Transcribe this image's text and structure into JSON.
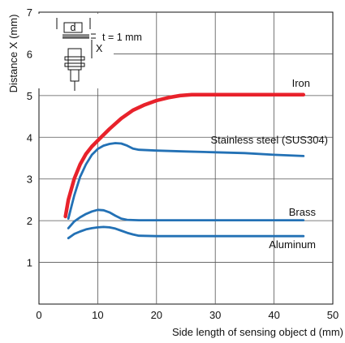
{
  "chart_data": {
    "type": "line",
    "xlabel": "Side length of sensing object d (mm)",
    "ylabel": "Distance X (mm)",
    "xlim": [
      0,
      50
    ],
    "ylim": [
      0,
      7
    ],
    "x_ticks": [
      "0",
      "10",
      "20",
      "30",
      "40",
      "50"
    ],
    "y_ticks": [
      "1",
      "2",
      "3",
      "4",
      "5",
      "6",
      "7"
    ],
    "grid": true,
    "inset_label": "t = 1 mm",
    "inset_box_label": "d",
    "inset_x_label": "X",
    "series": [
      {
        "name": "Iron",
        "color": "#e8222b",
        "x": [
          4.5,
          5,
          6,
          7,
          8,
          9,
          10,
          12,
          14,
          16,
          18,
          20,
          22,
          24,
          26,
          30,
          35,
          40,
          45
        ],
        "y": [
          2.1,
          2.5,
          3.0,
          3.35,
          3.6,
          3.78,
          3.92,
          4.2,
          4.45,
          4.65,
          4.78,
          4.88,
          4.95,
          5.0,
          5.02,
          5.02,
          5.02,
          5.02,
          5.02
        ]
      },
      {
        "name": "Stainless steel (SUS304)",
        "color": "#2371b5",
        "x": [
          5,
          6,
          7,
          8,
          9,
          10,
          11,
          12,
          13,
          14,
          15,
          16,
          17,
          20,
          25,
          30,
          35,
          40,
          45
        ],
        "y": [
          2.05,
          2.6,
          3.05,
          3.35,
          3.58,
          3.72,
          3.8,
          3.84,
          3.86,
          3.85,
          3.8,
          3.73,
          3.7,
          3.68,
          3.66,
          3.64,
          3.62,
          3.58,
          3.55
        ]
      },
      {
        "name": "Brass",
        "color": "#2371b5",
        "x": [
          5,
          6,
          7,
          8,
          9,
          10,
          11,
          12,
          13,
          14,
          15,
          17,
          20,
          30,
          45
        ],
        "y": [
          1.82,
          1.98,
          2.08,
          2.16,
          2.22,
          2.26,
          2.25,
          2.2,
          2.12,
          2.05,
          2.02,
          2.01,
          2.01,
          2.01,
          2.01
        ]
      },
      {
        "name": "Aluminum",
        "color": "#2371b5",
        "x": [
          5,
          6,
          7,
          8,
          9,
          10,
          11,
          12,
          13,
          14,
          15,
          16,
          17,
          20,
          30,
          45
        ],
        "y": [
          1.58,
          1.68,
          1.74,
          1.79,
          1.82,
          1.84,
          1.85,
          1.84,
          1.81,
          1.76,
          1.71,
          1.67,
          1.64,
          1.63,
          1.63,
          1.63
        ]
      }
    ]
  }
}
